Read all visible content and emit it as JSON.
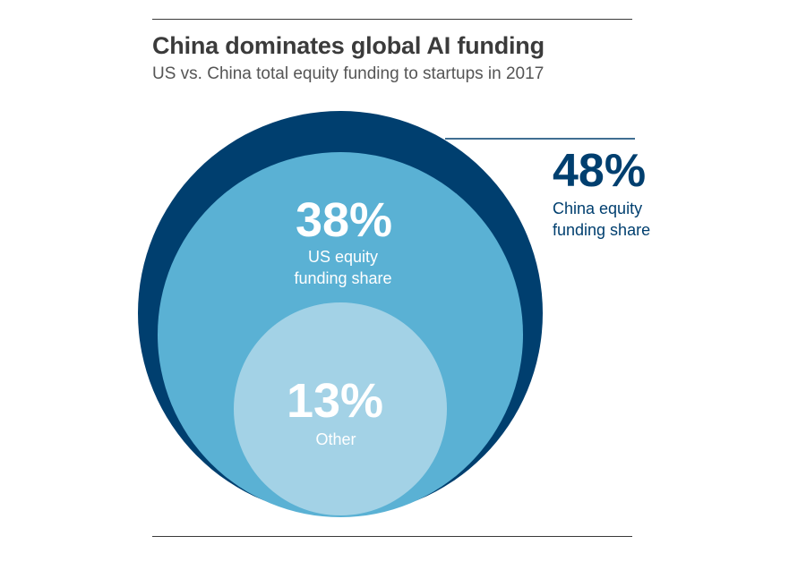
{
  "title": "China dominates global AI funding",
  "subtitle": "US vs. China total equity funding to startups in 2017",
  "colors": {
    "china": "#003f6f",
    "us": "#5ab1d4",
    "other": "#a3d2e6",
    "rule": "#3a3a3a",
    "title": "#3b3b3b",
    "subtitle": "#555555"
  },
  "chart_data": {
    "type": "nested-circles",
    "title": "China dominates global AI funding",
    "subtitle": "US vs. China total equity funding to startups in 2017",
    "series": [
      {
        "value": 48,
        "value_label": "48%",
        "label_lines": [
          "China equity",
          "funding share"
        ],
        "color": "#003f6f"
      },
      {
        "value": 38,
        "value_label": "38%",
        "label_lines": [
          "US equity",
          "funding share"
        ],
        "color": "#5ab1d4"
      },
      {
        "value": 13,
        "value_label": "13%",
        "label_lines": [
          "Other"
        ],
        "color": "#a3d2e6"
      }
    ]
  }
}
